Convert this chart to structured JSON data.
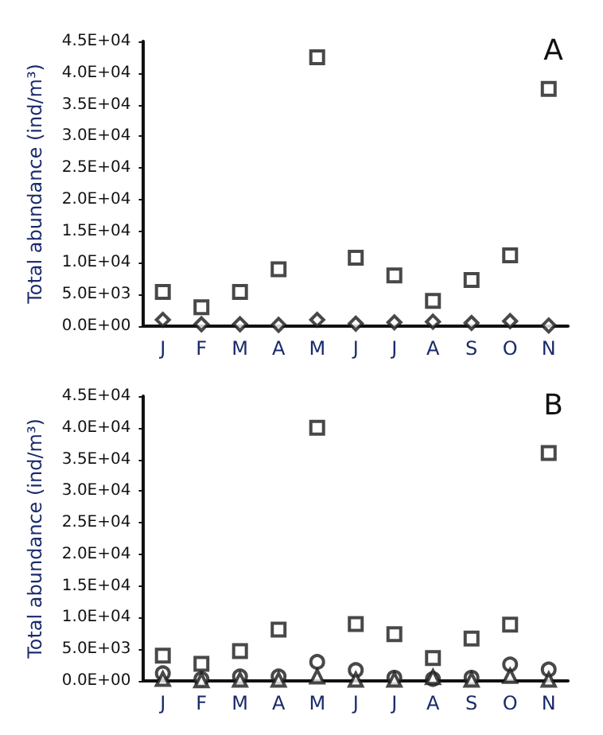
{
  "chart_data": [
    {
      "type": "scatter",
      "title": "A",
      "ylabel": "Total abundance (ind/m³)",
      "categories": [
        "J",
        "F",
        "M",
        "A",
        "M",
        "J",
        "J",
        "A",
        "S",
        "O",
        "N"
      ],
      "series": [
        {
          "color": "#1a1a1a",
          "marker": "square",
          "values": [
            5400,
            3000,
            5400,
            9000,
            42500,
            10800,
            8000,
            4000,
            7300,
            11200,
            37500
          ]
        },
        {
          "color": "#1a1a1a",
          "marker": "diamond",
          "values": [
            1000,
            300,
            300,
            200,
            1000,
            400,
            600,
            700,
            500,
            800,
            100
          ]
        }
      ],
      "ylim": [
        0,
        45000
      ],
      "yticks": [
        {
          "value": 0,
          "label": "0.0E+00"
        },
        {
          "value": 5000,
          "label": "5.0E+03"
        },
        {
          "value": 10000,
          "label": "1.0E+04"
        },
        {
          "value": 15000,
          "label": "1.5E+04"
        },
        {
          "value": 20000,
          "label": "2.0E+04"
        },
        {
          "value": 25000,
          "label": "2.5E+04"
        },
        {
          "value": 30000,
          "label": "3.0E+04"
        },
        {
          "value": 35000,
          "label": "3.5E+04"
        },
        {
          "value": 40000,
          "label": "4.0E+04"
        },
        {
          "value": 45000,
          "label": "4.5E+04"
        }
      ],
      "grid": false
    },
    {
      "type": "scatter",
      "title": "B",
      "ylabel": "Total abundance (ind/m³)",
      "categories": [
        "J",
        "F",
        "M",
        "A",
        "M",
        "J",
        "J",
        "A",
        "S",
        "O",
        "N"
      ],
      "series": [
        {
          "color": "#1a1a1a",
          "marker": "square",
          "values": [
            4000,
            2700,
            4700,
            8100,
            40000,
            9000,
            7400,
            3600,
            6700,
            8900,
            36000
          ]
        },
        {
          "color": "#1a1a1a",
          "marker": "circle",
          "values": [
            1200,
            300,
            700,
            700,
            3000,
            1700,
            500,
            300,
            500,
            2600,
            1800
          ]
        },
        {
          "color": "#1a1a1a",
          "marker": "triangle",
          "values": [
            300,
            100,
            200,
            200,
            700,
            200,
            200,
            600,
            200,
            800,
            200
          ]
        }
      ],
      "ylim": [
        0,
        45000
      ],
      "yticks": [
        {
          "value": 0,
          "label": "0.0E+00"
        },
        {
          "value": 5000,
          "label": "5.0E+03"
        },
        {
          "value": 10000,
          "label": "1.0E+04"
        },
        {
          "value": 15000,
          "label": "1.5E+04"
        },
        {
          "value": 20000,
          "label": "2.0E+04"
        },
        {
          "value": 25000,
          "label": "2.5E+04"
        },
        {
          "value": 30000,
          "label": "3.0E+04"
        },
        {
          "value": 35000,
          "label": "3.5E+04"
        },
        {
          "value": 40000,
          "label": "4.0E+04"
        },
        {
          "value": 45000,
          "label": "4.5E+04"
        }
      ],
      "grid": false
    }
  ]
}
